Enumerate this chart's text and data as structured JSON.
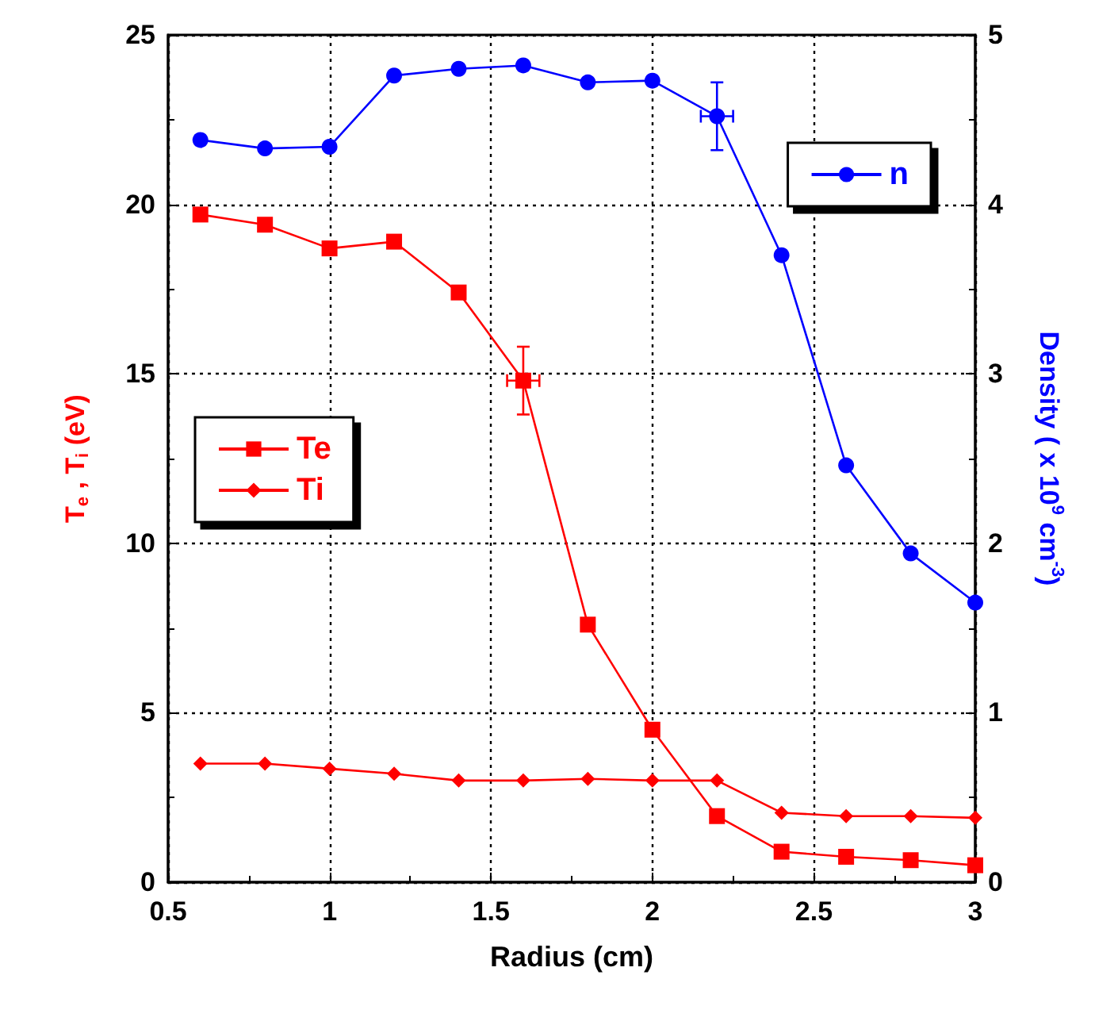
{
  "chart_data": {
    "type": "line",
    "xlabel": "Radius (cm)",
    "ylabel": "T$_{e}$ , T$_{i}$ (eV)",
    "y2label": "Density ( x 10$^{9}$ cm$^{-3}$)",
    "x": [
      0.6,
      0.8,
      1.0,
      1.2,
      1.4,
      1.6,
      1.8,
      2.0,
      2.2,
      2.4,
      2.6,
      2.8,
      3.0
    ],
    "series": [
      {
        "name": "Te",
        "color": "#ff0000",
        "marker": "square",
        "values": [
          19.7,
          19.4,
          18.7,
          18.9,
          17.4,
          14.8,
          7.6,
          4.5,
          1.95,
          0.9,
          0.75,
          0.65,
          0.5
        ],
        "errors": [
          null,
          null,
          null,
          null,
          null,
          1,
          null,
          null,
          null,
          null,
          null,
          null,
          null
        ],
        "xerrors": [
          null,
          null,
          null,
          null,
          null,
          0.05,
          null,
          null,
          null,
          null,
          null,
          null,
          null
        ]
      },
      {
        "name": "Ti",
        "color": "#ff0000",
        "marker": "diamond",
        "values": [
          3.5,
          3.5,
          3.35,
          3.2,
          3.0,
          3.0,
          3.05,
          3.0,
          3.0,
          2.05,
          1.95,
          1.95,
          1.9
        ]
      },
      {
        "name": "n",
        "color": "#0000ff",
        "marker": "circle",
        "axis": "y2",
        "values": [
          4.38,
          4.33,
          4.34,
          4.76,
          4.8,
          4.82,
          4.72,
          4.73,
          4.52,
          3.7,
          2.46,
          1.94,
          1.65
        ],
        "errors": [
          null,
          null,
          null,
          null,
          null,
          null,
          null,
          null,
          0.2,
          null,
          null,
          null,
          null
        ],
        "xerrors": [
          null,
          null,
          null,
          null,
          null,
          null,
          null,
          null,
          0.05,
          null,
          null,
          null,
          null
        ]
      }
    ],
    "xlim": [
      0.5,
      3
    ],
    "xticks": [
      0.5,
      1,
      1.5,
      2,
      2.5,
      3
    ],
    "ylim": [
      0,
      25
    ],
    "yticks": [
      0,
      5,
      10,
      15,
      20,
      25
    ],
    "y2lim": [
      0,
      5
    ],
    "y2ticks": [
      0,
      1,
      2,
      3,
      4,
      5
    ],
    "grid": true,
    "legend": "left",
    "line_style": "solid"
  }
}
